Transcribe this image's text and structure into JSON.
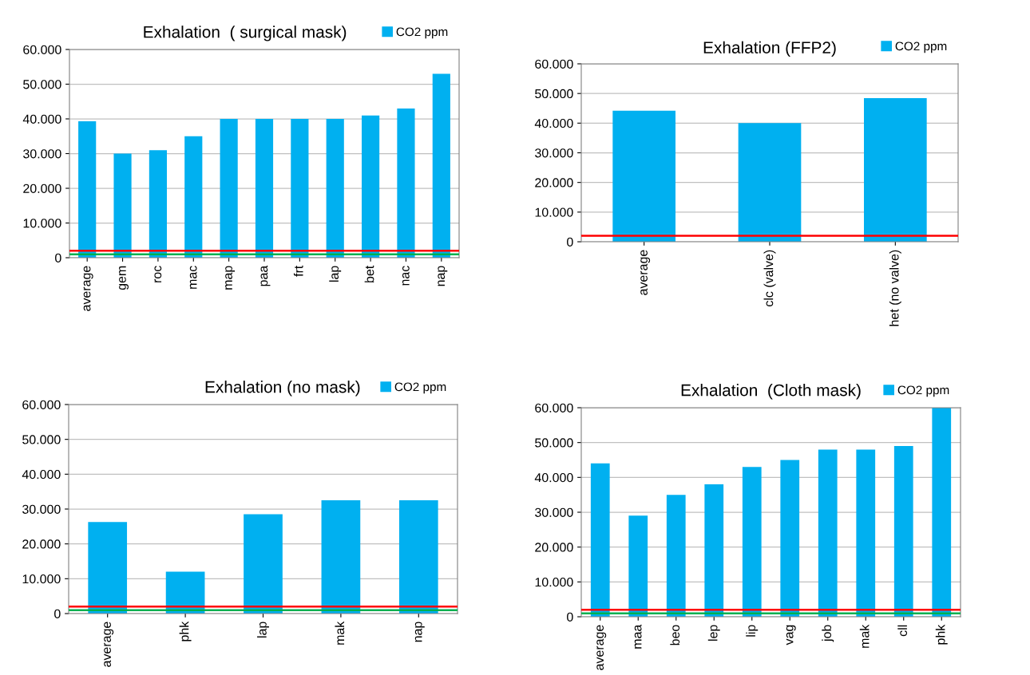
{
  "chart_data": [
    {
      "type": "bar",
      "title": "Exhalation  ( surgical mask)",
      "categories": [
        "average",
        "gem",
        "roc",
        "mac",
        "map",
        "paa",
        "frt",
        "lap",
        "bet",
        "nac",
        "nap"
      ],
      "series": [
        {
          "name": "CO2 ppm",
          "color": "#00b0f0",
          "values": [
            39300,
            30000,
            31000,
            35000,
            40000,
            40000,
            40000,
            40000,
            41000,
            43000,
            53000
          ]
        }
      ],
      "ylim": [
        0,
        60000
      ],
      "yticks": [
        0,
        {
          "value": 10000,
          "label": "10.000"
        },
        {
          "value": 20000,
          "label": "20.000"
        },
        {
          "value": 30000,
          "label": "30.000"
        },
        {
          "value": 40000,
          "label": "40.000"
        },
        {
          "value": 50000,
          "label": "50.000"
        },
        {
          "value": 60000,
          "label": "60.000"
        }
      ],
      "ref_lines": [
        {
          "axis": "y",
          "value": 2000,
          "color": "#ff0000"
        },
        {
          "axis": "y",
          "value": 1000,
          "color": "#00b050"
        }
      ],
      "grid": "y",
      "legend": "top right"
    },
    {
      "type": "bar",
      "title": "Exhalation (FFP2)",
      "categories": [
        "average",
        "clc (valve)",
        "het (no valve)"
      ],
      "series": [
        {
          "name": "CO2 ppm",
          "color": "#00b0f0",
          "values": [
            44200,
            40000,
            48400
          ]
        }
      ],
      "ylim": [
        0,
        60000
      ],
      "yticks": [
        0,
        {
          "value": 10000,
          "label": "10.000"
        },
        {
          "value": 20000,
          "label": "20.000"
        },
        {
          "value": 30000,
          "label": "30.000"
        },
        {
          "value": 40000,
          "label": "40.000"
        },
        {
          "value": 50000,
          "label": "50.000"
        },
        {
          "value": 60000,
          "label": "60.000"
        }
      ],
      "ref_lines": [
        {
          "axis": "y",
          "value": 2000,
          "color": "#ff0000"
        }
      ],
      "grid": "y",
      "legend": "top right"
    },
    {
      "type": "bar",
      "title": "Exhalation (no mask)",
      "categories": [
        "average",
        "phk",
        "lap",
        "mak",
        "nap"
      ],
      "series": [
        {
          "name": "CO2 ppm",
          "color": "#00b0f0",
          "values": [
            26300,
            12000,
            28500,
            32500,
            32500
          ]
        }
      ],
      "ylim": [
        0,
        60000
      ],
      "yticks": [
        0,
        {
          "value": 10000,
          "label": "10.000"
        },
        {
          "value": 20000,
          "label": "20.000"
        },
        {
          "value": 30000,
          "label": "30.000"
        },
        {
          "value": 40000,
          "label": "40.000"
        },
        {
          "value": 50000,
          "label": "50.000"
        },
        {
          "value": 60000,
          "label": "60.000"
        }
      ],
      "ref_lines": [
        {
          "axis": "y",
          "value": 2000,
          "color": "#ff0000"
        },
        {
          "axis": "y",
          "value": 1000,
          "color": "#00b050"
        }
      ],
      "grid": "y",
      "legend": "top right"
    },
    {
      "type": "bar",
      "title": "Exhalation  (Cloth mask)",
      "categories": [
        "average",
        "maa",
        "beo",
        "lep",
        "lip",
        "vag",
        "job",
        "mak",
        "cll",
        "phk"
      ],
      "series": [
        {
          "name": "CO2 ppm",
          "color": "#00b0f0",
          "values": [
            44000,
            29000,
            35000,
            38000,
            43000,
            45000,
            48000,
            48000,
            49000,
            60000
          ]
        }
      ],
      "ylim": [
        0,
        60000
      ],
      "yticks": [
        0,
        {
          "value": 10000,
          "label": "10.000"
        },
        {
          "value": 20000,
          "label": "20.000"
        },
        {
          "value": 30000,
          "label": "30.000"
        },
        {
          "value": 40000,
          "label": "40.000"
        },
        {
          "value": 50000,
          "label": "50.000"
        },
        {
          "value": 60000,
          "label": "60.000"
        }
      ],
      "ref_lines": [
        {
          "axis": "y",
          "value": 2000,
          "color": "#ff0000"
        },
        {
          "axis": "y",
          "value": 1000,
          "color": "#00b050"
        }
      ],
      "grid": "y",
      "legend": "top right"
    }
  ]
}
